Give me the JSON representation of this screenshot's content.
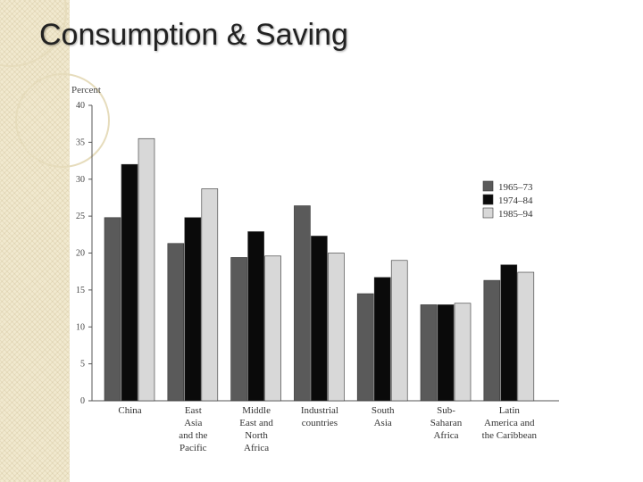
{
  "slide": {
    "title": "Consumption & Saving"
  },
  "colors": {
    "series_1965": "#5a5a5a",
    "series_1974": "#0a0a0a",
    "series_1985": "#d8d8d8",
    "axis": "#555555",
    "strip": "#f1e9cf"
  },
  "chart_data": {
    "type": "bar",
    "title": "",
    "xlabel": "",
    "ylabel": "Percent",
    "ylim": [
      0,
      40
    ],
    "yticks": [
      0,
      5,
      10,
      15,
      20,
      25,
      30,
      35,
      40
    ],
    "grid": false,
    "legend_position": "right",
    "categories": [
      "China",
      "East Asia and the Pacific",
      "Middle East and North Africa",
      "Industrial countries",
      "South Asia",
      "Sub-Saharan Africa",
      "Latin America and the Caribbean"
    ],
    "category_lines": [
      [
        "China"
      ],
      [
        "East",
        "Asia",
        "and the",
        "Pacific"
      ],
      [
        "Middle",
        "East and",
        "North",
        "Africa"
      ],
      [
        "Industrial",
        "countries"
      ],
      [
        "South",
        "Asia"
      ],
      [
        "Sub-",
        "Saharan",
        "Africa"
      ],
      [
        "Latin",
        "America and",
        "the Caribbean"
      ]
    ],
    "series": [
      {
        "name": "1965–73",
        "color": "#5a5a5a",
        "values": [
          24.8,
          21.3,
          19.4,
          26.4,
          14.5,
          13.0,
          16.3
        ]
      },
      {
        "name": "1974–84",
        "color": "#0a0a0a",
        "values": [
          32.0,
          24.8,
          22.9,
          22.3,
          16.7,
          13.0,
          18.4
        ]
      },
      {
        "name": "1985–94",
        "color": "#d8d8d8",
        "values": [
          35.5,
          28.7,
          19.6,
          20.0,
          19.0,
          13.2,
          17.4
        ]
      }
    ]
  }
}
